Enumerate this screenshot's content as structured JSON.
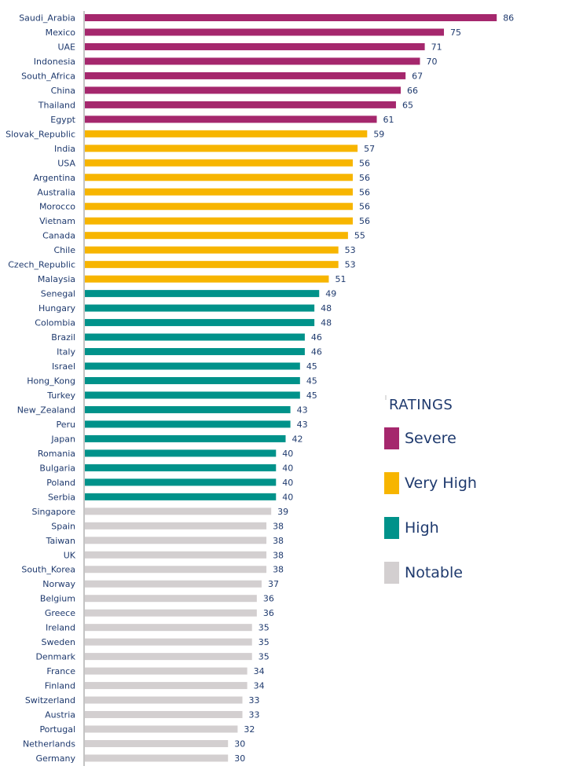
{
  "chart_data": {
    "type": "bar",
    "orientation": "horizontal",
    "title": "",
    "xlabel": "",
    "ylabel": "",
    "xlim": [
      0,
      86
    ],
    "grid": false,
    "legend_position": "right",
    "legend_title": "RATINGS",
    "legend": [
      {
        "key": "severe",
        "label": "Severe",
        "color": "#a5276d"
      },
      {
        "key": "very_high",
        "label": "Very High",
        "color": "#f7b500"
      },
      {
        "key": "high",
        "label": "High",
        "color": "#00928a"
      },
      {
        "key": "notable",
        "label": "Notable",
        "color": "#d3cfd0"
      }
    ],
    "categories": [
      "Saudi_Arabia",
      "Mexico",
      "UAE",
      "Indonesia",
      "South_Africa",
      "China",
      "Thailand",
      "Egypt",
      "Slovak_Republic",
      "India",
      "USA",
      "Argentina",
      "Australia",
      "Morocco",
      "Vietnam",
      "Canada",
      "Chile",
      "Czech_Republic",
      "Malaysia",
      "Senegal",
      "Hungary",
      "Colombia",
      "Brazil",
      "Italy",
      "Israel",
      "Hong_Kong",
      "Turkey",
      "New_Zealand",
      "Peru",
      "Japan",
      "Romania",
      "Bulgaria",
      "Poland",
      "Serbia",
      "Singapore",
      "Spain",
      "Taiwan",
      "UK",
      "South_Korea",
      "Norway",
      "Belgium",
      "Greece",
      "Ireland",
      "Sweden",
      "Denmark",
      "France",
      "Finland",
      "Switzerland",
      "Austria",
      "Portugal",
      "Netherlands",
      "Germany"
    ],
    "values": [
      86,
      75,
      71,
      70,
      67,
      66,
      65,
      61,
      59,
      57,
      56,
      56,
      56,
      56,
      56,
      55,
      53,
      53,
      51,
      49,
      48,
      48,
      46,
      46,
      45,
      45,
      45,
      43,
      43,
      42,
      40,
      40,
      40,
      40,
      39,
      38,
      38,
      38,
      38,
      37,
      36,
      36,
      35,
      35,
      35,
      34,
      34,
      33,
      33,
      32,
      30,
      30
    ],
    "ratings": [
      "severe",
      "severe",
      "severe",
      "severe",
      "severe",
      "severe",
      "severe",
      "severe",
      "very_high",
      "very_high",
      "very_high",
      "very_high",
      "very_high",
      "very_high",
      "very_high",
      "very_high",
      "very_high",
      "very_high",
      "very_high",
      "high",
      "high",
      "high",
      "high",
      "high",
      "high",
      "high",
      "high",
      "high",
      "high",
      "high",
      "high",
      "high",
      "high",
      "high",
      "notable",
      "notable",
      "notable",
      "notable",
      "notable",
      "notable",
      "notable",
      "notable",
      "notable",
      "notable",
      "notable",
      "notable",
      "notable",
      "notable",
      "notable",
      "notable",
      "notable",
      "notable"
    ]
  }
}
